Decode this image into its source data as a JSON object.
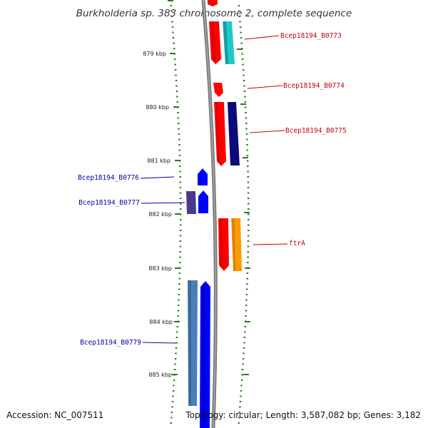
{
  "title": "Burkholderia sp. 383 chromosome 2, complete sequence",
  "footer": {
    "accession": "Accession: NC_007511",
    "stats": "Topology: circular; Length: 3,587,082 bp; Genes: 3,182"
  },
  "scale": {
    "ticks": [
      {
        "label": "879 kbp",
        "kbp": 879
      },
      {
        "label": "880 kbp",
        "kbp": 880
      },
      {
        "label": "881 kbp",
        "kbp": 881
      },
      {
        "label": "882 kbp",
        "kbp": 882
      },
      {
        "label": "883 kbp",
        "kbp": 883
      },
      {
        "label": "884 kbp",
        "kbp": 884
      },
      {
        "label": "885 kbp",
        "kbp": 885
      }
    ]
  },
  "colors": {
    "backbone": "#777777",
    "tick": "#2a7a1e",
    "forward_label": "#cc0000",
    "reverse_label": "#0000aa",
    "red": "#ff0000",
    "cyan": "#20c8cc",
    "navy": "#0a0a7a",
    "blue": "#0000ff",
    "purple": "#4a3a8a",
    "steel": "#4a7fb8",
    "orange": "#ff9900"
  },
  "labels": [
    {
      "name": "Bcep18194_B0773",
      "side": "right"
    },
    {
      "name": "Bcep18194_B0774",
      "side": "right"
    },
    {
      "name": "Bcep18194_B0775",
      "side": "right"
    },
    {
      "name": "Bcep18194_B0776",
      "side": "left"
    },
    {
      "name": "Bcep18194_B0777",
      "side": "left"
    },
    {
      "name": "ftrA",
      "side": "right"
    },
    {
      "name": "Bcep18194_B0779",
      "side": "left"
    }
  ]
}
